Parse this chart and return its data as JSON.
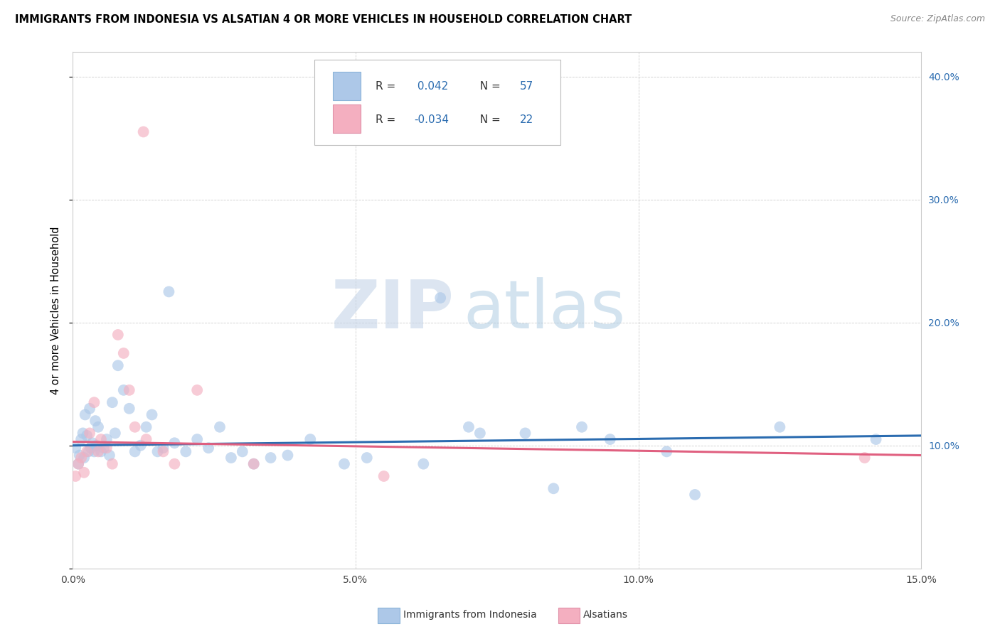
{
  "title": "IMMIGRANTS FROM INDONESIA VS ALSATIAN 4 OR MORE VEHICLES IN HOUSEHOLD CORRELATION CHART",
  "source": "Source: ZipAtlas.com",
  "ylabel": "4 or more Vehicles in Household",
  "legend1_label": "Immigrants from Indonesia",
  "legend2_label": "Alsatians",
  "r1": "0.042",
  "n1": "57",
  "r2": "-0.034",
  "n2": "22",
  "color_blue": "#adc8e8",
  "color_pink": "#f4afc0",
  "line_color_blue": "#2b6cb0",
  "line_color_pink": "#e06080",
  "text_blue": "#2b6cb0",
  "watermark_zip": "ZIP",
  "watermark_atlas": "atlas",
  "watermark_color": "#c8d8ec",
  "blue_points_x": [
    0.05,
    0.1,
    0.12,
    0.15,
    0.18,
    0.2,
    0.22,
    0.25,
    0.28,
    0.3,
    0.32,
    0.35,
    0.38,
    0.4,
    0.42,
    0.45,
    0.5,
    0.55,
    0.6,
    0.65,
    0.7,
    0.75,
    0.8,
    0.9,
    1.0,
    1.1,
    1.2,
    1.3,
    1.4,
    1.5,
    1.6,
    1.7,
    1.8,
    2.0,
    2.2,
    2.4,
    2.6,
    2.8,
    3.0,
    3.2,
    3.5,
    3.8,
    4.2,
    4.8,
    5.2,
    6.2,
    6.5,
    7.0,
    7.2,
    8.0,
    8.5,
    9.0,
    9.5,
    10.5,
    11.0,
    12.5,
    14.2
  ],
  "blue_points_y": [
    9.8,
    8.5,
    9.2,
    10.5,
    11.0,
    9.0,
    12.5,
    10.8,
    9.5,
    13.0,
    9.8,
    10.2,
    9.5,
    12.0,
    10.0,
    11.5,
    9.5,
    9.8,
    10.5,
    9.2,
    13.5,
    11.0,
    16.5,
    14.5,
    13.0,
    9.5,
    10.0,
    11.5,
    12.5,
    9.5,
    9.8,
    22.5,
    10.2,
    9.5,
    10.5,
    9.8,
    11.5,
    9.0,
    9.5,
    8.5,
    9.0,
    9.2,
    10.5,
    8.5,
    9.0,
    8.5,
    22.0,
    11.5,
    11.0,
    11.0,
    6.5,
    11.5,
    10.5,
    9.5,
    6.0,
    11.5,
    10.5
  ],
  "pink_points_x": [
    0.05,
    0.1,
    0.15,
    0.2,
    0.25,
    0.3,
    0.38,
    0.45,
    0.5,
    0.6,
    0.7,
    0.8,
    0.9,
    1.0,
    1.1,
    1.3,
    1.6,
    1.8,
    2.2,
    3.2,
    5.5,
    14.0
  ],
  "pink_points_y": [
    7.5,
    8.5,
    9.0,
    7.8,
    9.5,
    11.0,
    13.5,
    9.5,
    10.5,
    9.8,
    8.5,
    19.0,
    17.5,
    14.5,
    11.5,
    10.5,
    9.5,
    8.5,
    14.5,
    8.5,
    7.5,
    9.0
  ],
  "pink_outlier_x": 1.25,
  "pink_outlier_y": 35.5,
  "x_min": 0.0,
  "x_max": 15.0,
  "y_min": 0.0,
  "y_max": 42.0,
  "x_tick_vals": [
    0.0,
    5.0,
    10.0,
    15.0
  ],
  "x_tick_labels": [
    "0.0%",
    "5.0%",
    "10.0%",
    "15.0%"
  ],
  "y_tick_vals": [
    0,
    10,
    20,
    30,
    40
  ],
  "y_tick_labels_right": [
    "",
    "10.0%",
    "20.0%",
    "30.0%",
    "40.0%"
  ],
  "marker_size": 130,
  "marker_alpha": 0.65,
  "grid_color": "#cccccc",
  "spine_color": "#cccccc"
}
